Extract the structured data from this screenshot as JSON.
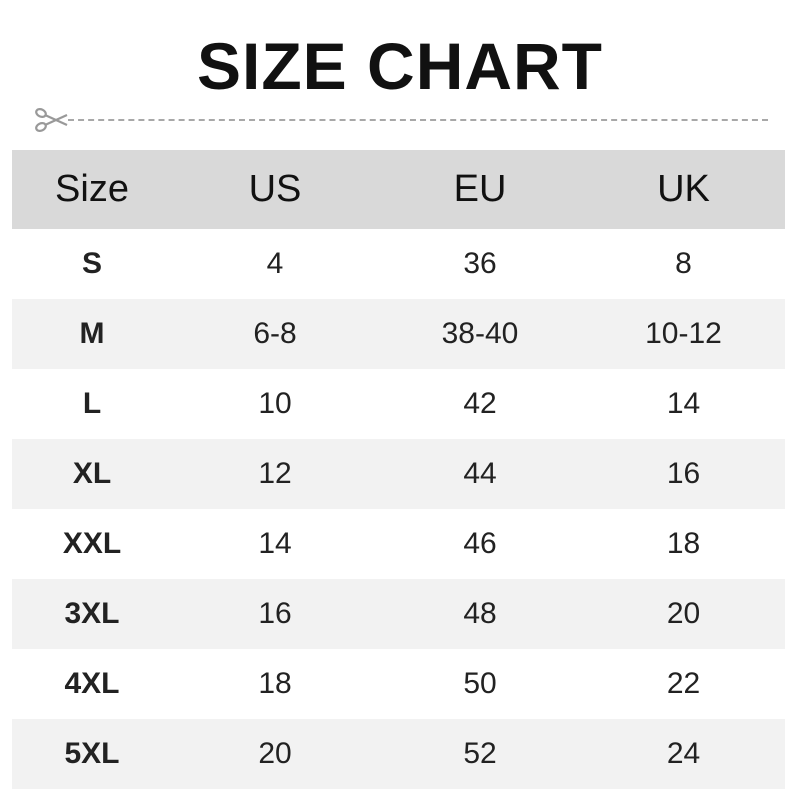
{
  "title": "SIZE CHART",
  "icons": {
    "cut_line": "scissors-icon"
  },
  "colors": {
    "header_bg": "#d9d9d9",
    "alt_row_bg": "#f2f2f2",
    "dash": "#a8a8a8"
  },
  "table": {
    "headers": [
      "Size",
      "US",
      "EU",
      "UK"
    ],
    "rows": [
      [
        "S",
        "4",
        "36",
        "8"
      ],
      [
        "M",
        "6-8",
        "38-40",
        "10-12"
      ],
      [
        "L",
        "10",
        "42",
        "14"
      ],
      [
        "XL",
        "12",
        "44",
        "16"
      ],
      [
        "XXL",
        "14",
        "46",
        "18"
      ],
      [
        "3XL",
        "16",
        "48",
        "20"
      ],
      [
        "4XL",
        "18",
        "50",
        "22"
      ],
      [
        "5XL",
        "20",
        "52",
        "24"
      ]
    ]
  }
}
